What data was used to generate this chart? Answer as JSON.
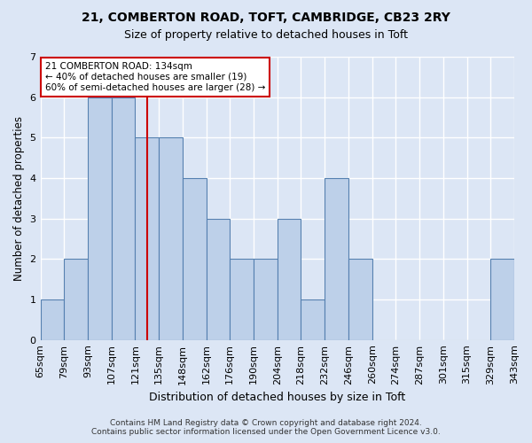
{
  "title1": "21, COMBERTON ROAD, TOFT, CAMBRIDGE, CB23 2RY",
  "title2": "Size of property relative to detached houses in Toft",
  "xlabel": "Distribution of detached houses by size in Toft",
  "ylabel": "Number of detached properties",
  "categories": [
    "65sqm",
    "79sqm",
    "93sqm",
    "107sqm",
    "121sqm",
    "135sqm",
    "148sqm",
    "162sqm",
    "176sqm",
    "190sqm",
    "204sqm",
    "218sqm",
    "232sqm",
    "246sqm",
    "260sqm",
    "274sqm",
    "287sqm",
    "301sqm",
    "315sqm",
    "329sqm",
    "343sqm"
  ],
  "values": [
    1,
    2,
    6,
    6,
    5,
    5,
    4,
    3,
    2,
    2,
    3,
    1,
    4,
    2,
    0,
    0,
    0,
    0,
    0,
    2
  ],
  "bar_color": "#bdd0e9",
  "bar_edge_color": "#5580b0",
  "vline_index": 4.5,
  "vline_color": "#cc0000",
  "annotation_title": "21 COMBERTON ROAD: 134sqm",
  "annotation_line1": "← 40% of detached houses are smaller (19)",
  "annotation_line2": "60% of semi-detached houses are larger (28) →",
  "background_color": "#dce6f5",
  "plot_bg_color": "#dce6f5",
  "grid_color": "#ffffff",
  "ylim": [
    0,
    7
  ],
  "yticks": [
    0,
    1,
    2,
    3,
    4,
    5,
    6,
    7
  ],
  "footer1": "Contains HM Land Registry data © Crown copyright and database right 2024.",
  "footer2": "Contains public sector information licensed under the Open Government Licence v3.0."
}
